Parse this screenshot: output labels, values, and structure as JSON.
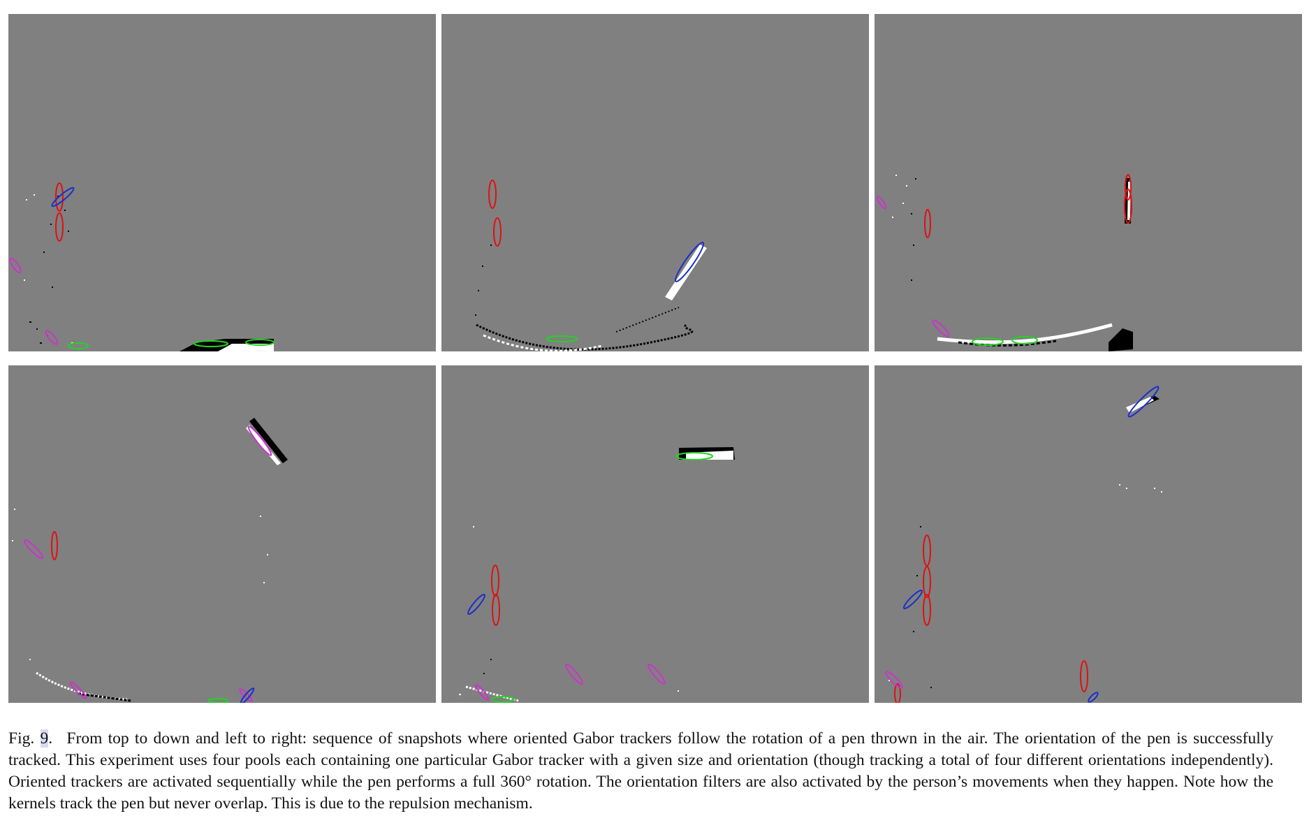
{
  "figure": {
    "panels": [
      {
        "id": "snapshot-1",
        "position": "top-left"
      },
      {
        "id": "snapshot-2",
        "position": "top-center"
      },
      {
        "id": "snapshot-3",
        "position": "top-right"
      },
      {
        "id": "snapshot-4",
        "position": "bottom-left"
      },
      {
        "id": "snapshot-5",
        "position": "bottom-center"
      },
      {
        "id": "snapshot-6",
        "position": "bottom-right"
      }
    ],
    "colors": {
      "background": "#808080",
      "events_on": "#ffffff",
      "events_off": "#000000",
      "tracker_vertical": "#e01010",
      "tracker_diag_right": "#1a2fc8",
      "tracker_horizontal": "#22d422",
      "tracker_diag_left": "#cc33cc"
    },
    "caption": {
      "prefix": "Fig.",
      "number": "9",
      "suffix": ".",
      "text": "From top to down and left to right: sequence of snapshots where oriented Gabor trackers follow the rotation of a pen thrown in the air. The orientation of the pen is successfully tracked. This experiment uses four pools each containing one particular Gabor tracker with a given size and orientation (though tracking a total of four different orientations independently). Oriented trackers are activated sequentially while the pen performs a full 360° rotation. The orientation filters are also activated by the person’s movements when they happen. Note how the kernels track the pen but never overlap. This is due to the repulsion mechanism."
    }
  }
}
